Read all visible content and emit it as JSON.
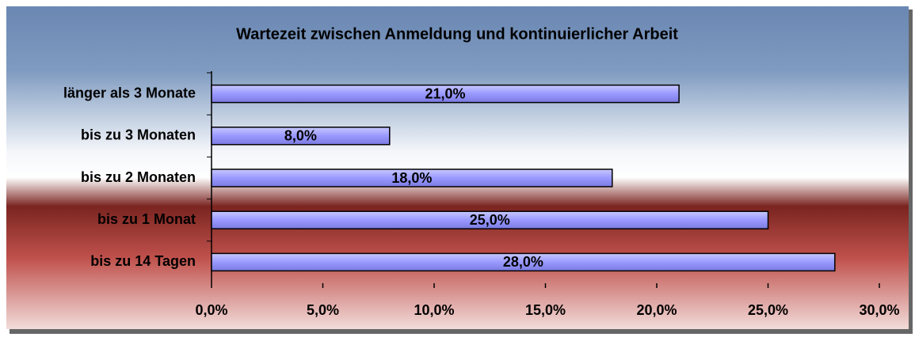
{
  "chart_data": {
    "type": "bar",
    "orientation": "horizontal",
    "title": "Wartezeit zwischen Anmeldung und kontinuierlicher Arbeit",
    "categories": [
      "länger als 3 Monate",
      "bis zu 3 Monaten",
      "bis zu 2 Monaten",
      "bis zu 1 Monat",
      "bis zu 14 Tagen"
    ],
    "values": [
      21,
      8,
      18,
      25,
      28
    ],
    "value_labels": [
      "21,0%",
      "8,0%",
      "18,0%",
      "25,0%",
      "28,0%"
    ],
    "color": "#9999ff",
    "xlim": [
      0,
      30
    ],
    "xticks": [
      {
        "value": 0,
        "label": "0,0%"
      },
      {
        "value": 5,
        "label": "5,0%"
      },
      {
        "value": 10,
        "label": "10,0%"
      },
      {
        "value": 15,
        "label": "15,0%"
      },
      {
        "value": 20,
        "label": "20,0%"
      },
      {
        "value": 25,
        "label": "25,0%"
      },
      {
        "value": 30,
        "label": "30,0%"
      }
    ],
    "grid": false
  }
}
